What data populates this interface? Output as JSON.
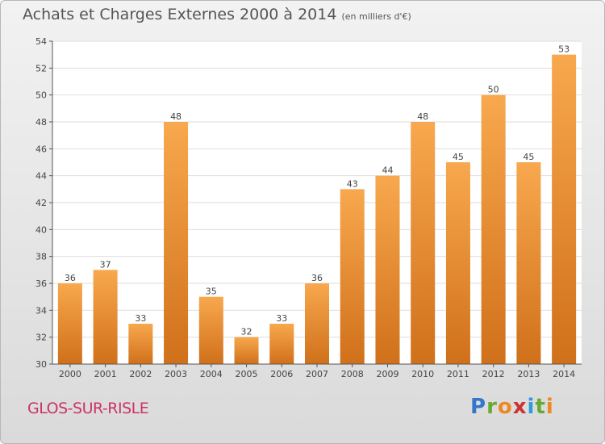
{
  "chart_data": {
    "type": "bar",
    "title": "Achats et Charges Externes 2000 à 2014",
    "subtitle": "(en milliers d'€)",
    "categories": [
      "2000",
      "2001",
      "2002",
      "2003",
      "2004",
      "2005",
      "2006",
      "2007",
      "2008",
      "2009",
      "2010",
      "2011",
      "2012",
      "2013",
      "2014"
    ],
    "values": [
      36,
      37,
      33,
      48,
      35,
      32,
      33,
      36,
      43,
      44,
      48,
      45,
      50,
      45,
      53
    ],
    "ylim": [
      30,
      54
    ],
    "yticks": [
      30,
      32,
      34,
      36,
      38,
      40,
      42,
      44,
      46,
      48,
      50,
      52,
      54
    ],
    "xlabel": "",
    "ylabel": "",
    "grid": true,
    "colors": {
      "bar_top": "#f8a84e",
      "bar_bottom": "#d0701a",
      "grid": "#dedede"
    }
  },
  "footer": {
    "commune": "GLOS-SUR-RISLE",
    "logo_letters": [
      "P",
      "r",
      "o",
      "x",
      "i",
      "t",
      "i"
    ]
  }
}
